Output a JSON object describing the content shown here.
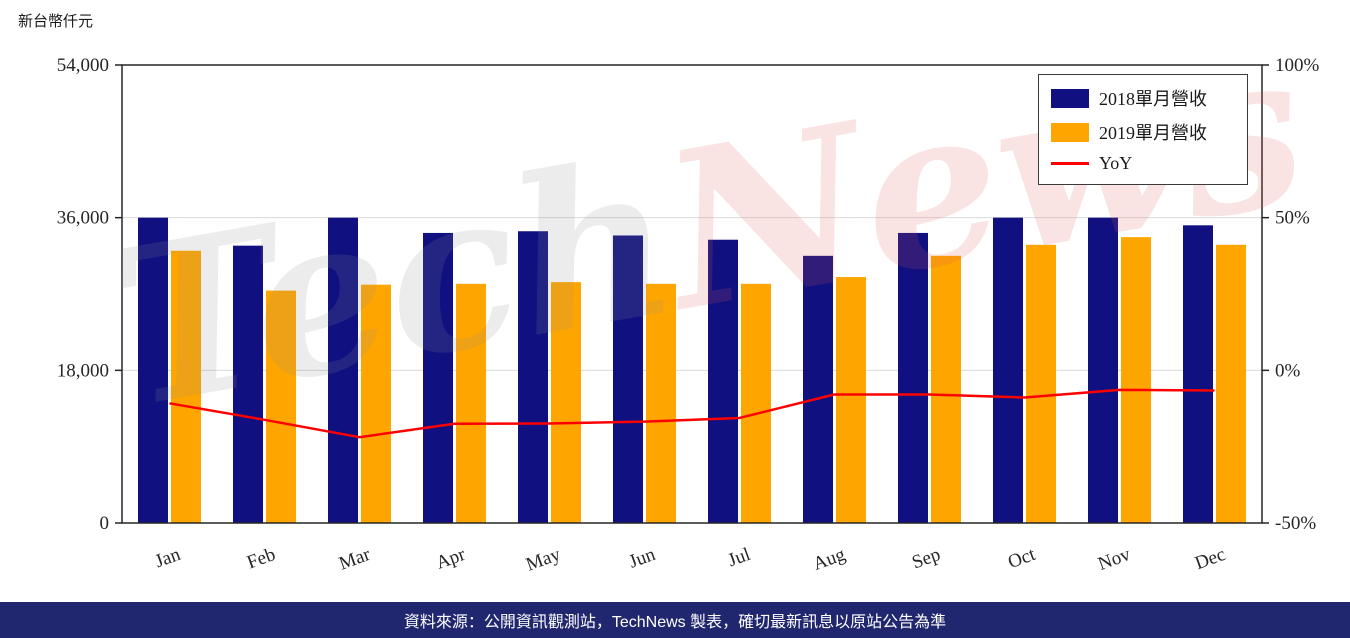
{
  "page": {
    "unit_label": "新台幣仟元",
    "footer": "資料來源：公開資訊觀測站，TechNews 製表，確切最新訊息以原站公告為準",
    "footer_bg": "#20276e",
    "watermark": {
      "text": "TechNews",
      "part1": "Tech",
      "part2": "News"
    }
  },
  "chart_data": {
    "type": "bar",
    "subtype": "grouped bars with overlaid YoY line",
    "categories": [
      "Jan",
      "Feb",
      "Mar",
      "Apr",
      "May",
      "Jun",
      "Jul",
      "Aug",
      "Sep",
      "Oct",
      "Nov",
      "Dec"
    ],
    "series": [
      {
        "name": "2018單月營收",
        "type": "bar",
        "color": "#101080",
        "values": [
          36000,
          32700,
          36000,
          34200,
          34400,
          33900,
          33400,
          31500,
          34200,
          36000,
          36000,
          35100
        ]
      },
      {
        "name": "2019單月營收",
        "type": "bar",
        "color": "#ffa500",
        "values": [
          32100,
          27400,
          28100,
          28200,
          28400,
          28200,
          28200,
          29000,
          31500,
          32800,
          33700,
          32800
        ]
      },
      {
        "name": "YoY",
        "type": "line",
        "color": "#ff0000",
        "values": [
          -10.8,
          -16.2,
          -21.9,
          -17.5,
          -17.4,
          -16.8,
          -15.6,
          -7.9,
          -7.9,
          -8.9,
          -6.4,
          -6.6
        ]
      }
    ],
    "left_axis": {
      "title": "新台幣仟元",
      "min": 0,
      "max": 54000,
      "tick_values": [
        0,
        18000,
        36000,
        54000
      ],
      "tick_labels": [
        "0",
        "18,000",
        "36,000",
        "54,000"
      ]
    },
    "right_axis": {
      "title": "YoY %",
      "min": -50,
      "max": 100,
      "tick_values": [
        -50,
        0,
        50,
        100
      ],
      "tick_labels": [
        "-50%",
        "0%",
        "50%",
        "100%"
      ]
    },
    "legend_position": "top-right",
    "grid": true
  }
}
